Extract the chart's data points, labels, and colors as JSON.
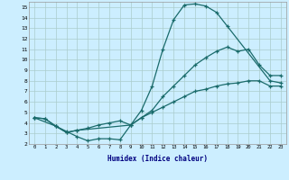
{
  "xlabel": "Humidex (Indice chaleur)",
  "bg_color": "#cceeff",
  "line_color": "#1a6b6b",
  "grid_color": "#aacccc",
  "xlim": [
    -0.5,
    23.5
  ],
  "ylim": [
    2,
    15.5
  ],
  "xticks": [
    0,
    1,
    2,
    3,
    4,
    5,
    6,
    7,
    8,
    9,
    10,
    11,
    12,
    13,
    14,
    15,
    16,
    17,
    18,
    19,
    20,
    21,
    22,
    23
  ],
  "yticks": [
    2,
    3,
    4,
    5,
    6,
    7,
    8,
    9,
    10,
    11,
    12,
    13,
    14,
    15
  ],
  "line1_x": [
    0,
    1,
    2,
    3,
    4,
    5,
    6,
    7,
    8,
    9,
    10,
    11,
    12,
    13,
    14,
    15,
    16,
    17,
    18,
    22,
    23
  ],
  "line1_y": [
    4.5,
    4.4,
    3.7,
    3.2,
    2.7,
    2.3,
    2.5,
    2.5,
    2.4,
    3.8,
    5.2,
    7.5,
    11.0,
    13.8,
    15.2,
    15.3,
    15.1,
    14.5,
    13.2,
    8.0,
    7.8
  ],
  "line2_x": [
    0,
    2,
    3,
    4,
    9,
    10,
    11,
    12,
    13,
    14,
    15,
    16,
    17,
    18,
    19,
    20,
    21,
    22,
    23
  ],
  "line2_y": [
    4.5,
    3.7,
    3.1,
    3.3,
    3.8,
    4.5,
    5.2,
    6.5,
    7.5,
    8.5,
    9.5,
    10.2,
    10.8,
    11.2,
    10.8,
    11.0,
    9.5,
    8.5,
    8.5
  ],
  "line3_x": [
    0,
    1,
    2,
    3,
    4,
    5,
    6,
    7,
    8,
    9,
    10,
    11,
    12,
    13,
    14,
    15,
    16,
    17,
    18,
    19,
    20,
    21,
    22,
    23
  ],
  "line3_y": [
    4.5,
    4.4,
    3.7,
    3.1,
    3.3,
    3.5,
    3.8,
    4.0,
    4.2,
    3.8,
    4.5,
    5.0,
    5.5,
    6.0,
    6.5,
    7.0,
    7.2,
    7.5,
    7.7,
    7.8,
    8.0,
    8.0,
    7.5,
    7.5
  ]
}
